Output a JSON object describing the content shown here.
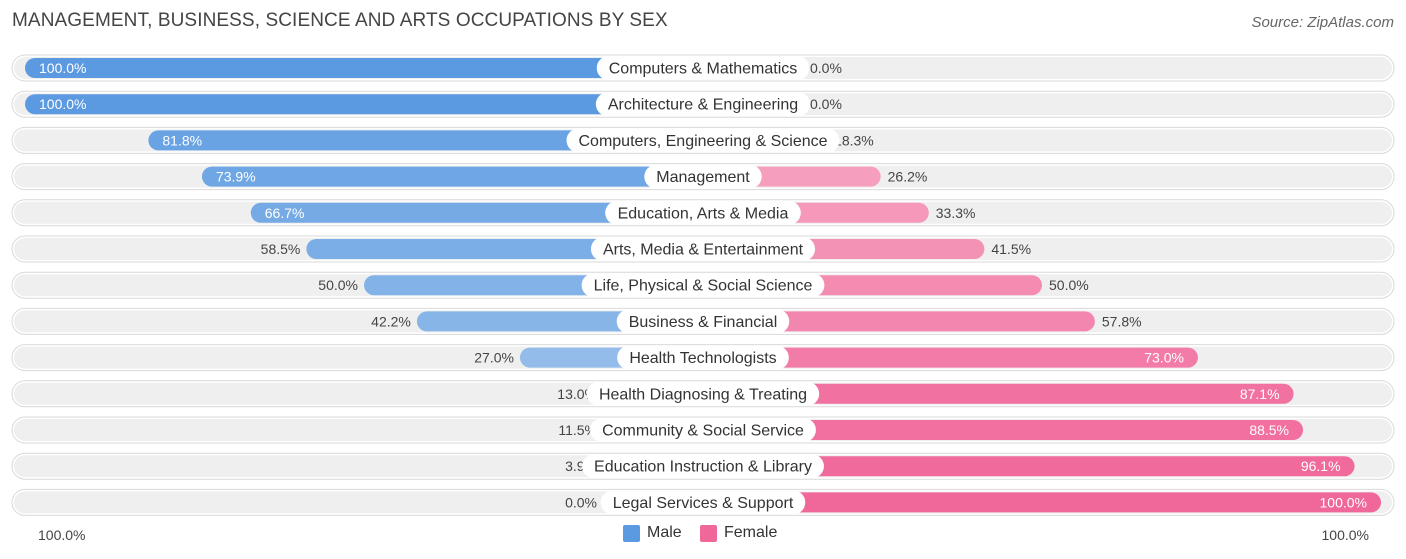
{
  "header": {
    "title": "MANAGEMENT, BUSINESS, SCIENCE AND ARTS OCCUPATIONS BY SEX",
    "source": "Source: ZipAtlas.com"
  },
  "axis": {
    "left_label": "100.0%",
    "right_label": "100.0%"
  },
  "legend": {
    "male_label": "Male",
    "female_label": "Female"
  },
  "colors": {
    "male_strong": "#5b9ae0",
    "male_light": "#a9c9ee",
    "female_strong": "#f0679a",
    "female_light": "#f7b1ca",
    "row_bg": "#efefef"
  },
  "chart_data": {
    "type": "bar",
    "orientation": "diverging-horizontal",
    "title": "MANAGEMENT, BUSINESS, SCIENCE AND ARTS OCCUPATIONS BY SEX",
    "categories": [
      "Computers & Mathematics",
      "Architecture & Engineering",
      "Computers, Engineering & Science",
      "Management",
      "Education, Arts & Media",
      "Arts, Media & Entertainment",
      "Life, Physical & Social Science",
      "Business & Financial",
      "Health Technologists",
      "Health Diagnosing & Treating",
      "Community & Social Service",
      "Education Instruction & Library",
      "Legal Services & Support"
    ],
    "series": [
      {
        "name": "Male",
        "values": [
          100.0,
          100.0,
          81.8,
          73.9,
          66.7,
          58.5,
          50.0,
          42.2,
          27.0,
          13.0,
          11.5,
          3.9,
          0.0
        ],
        "labels": [
          "100.0%",
          "100.0%",
          "81.8%",
          "73.9%",
          "66.7%",
          "58.5%",
          "50.0%",
          "42.2%",
          "27.0%",
          "13.0%",
          "11.5%",
          "3.9%",
          "0.0%"
        ]
      },
      {
        "name": "Female",
        "values": [
          0.0,
          0.0,
          18.3,
          26.2,
          33.3,
          41.5,
          50.0,
          57.8,
          73.0,
          87.1,
          88.5,
          96.1,
          100.0
        ],
        "labels": [
          "0.0%",
          "0.0%",
          "18.3%",
          "26.2%",
          "33.3%",
          "41.5%",
          "50.0%",
          "57.8%",
          "73.0%",
          "87.1%",
          "88.5%",
          "96.1%",
          "100.0%"
        ]
      }
    ],
    "xlim": [
      -100,
      100
    ],
    "legend_position": "bottom-center"
  }
}
